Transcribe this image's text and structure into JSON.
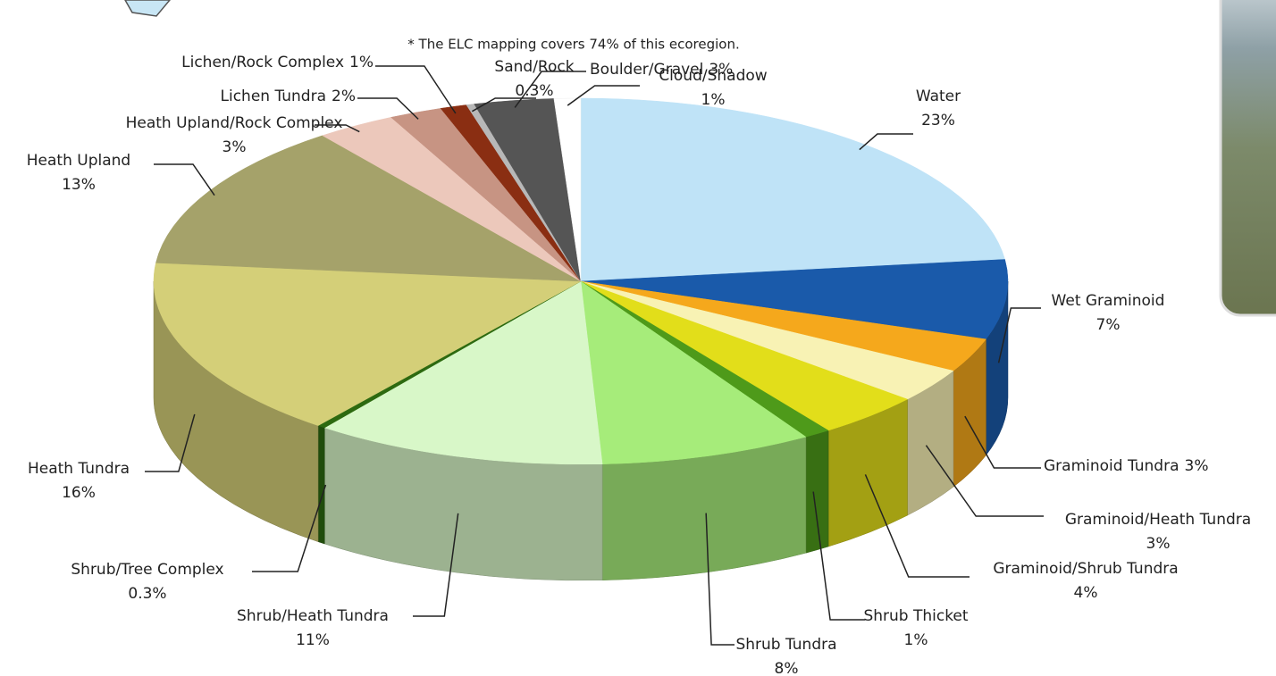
{
  "chart_data": {
    "type": "pie3d",
    "annotation": "* The ELC mapping covers 74% of this ecoregion.",
    "categories": [
      "Water",
      "Wet Graminoid",
      "Graminoid Tundra",
      "Graminoid/Heath Tundra",
      "Graminoid/Shrub Tundra",
      "Shrub Thicket",
      "Shrub Tundra",
      "Shrub/Heath Tundra",
      "Shrub/Tree Complex",
      "Heath Tundra",
      "Heath Upland",
      "Heath Upland/Rock Complex",
      "Lichen Tundra",
      "Lichen/Rock Complex",
      "Sand/Rock",
      "Boulder/Gravel",
      "Cloud/Shadow"
    ],
    "values": [
      23,
      7,
      3,
      3,
      4,
      1,
      8,
      11,
      0.3,
      16,
      13,
      3,
      2,
      1,
      0.3,
      3,
      1
    ],
    "value_labels": [
      "23%",
      "7%",
      "3%",
      "3%",
      "4%",
      "1%",
      "8%",
      "11%",
      "0.3%",
      "16%",
      "13%",
      "3%",
      "2%",
      "1%",
      "0.3%",
      "3%",
      "1%"
    ],
    "colors": [
      "#bfe3f7",
      "#1a5aaa",
      "#f5a81c",
      "#f8f2b4",
      "#e2de1a",
      "#4e9a1a",
      "#a6ec7a",
      "#d8f7c8",
      "#2d6a10",
      "#d4cf78",
      "#a5a26a",
      "#ecc8bb",
      "#c79483",
      "#8a2e12",
      "#b8b8b8",
      "#555555",
      "#ffffff"
    ]
  }
}
